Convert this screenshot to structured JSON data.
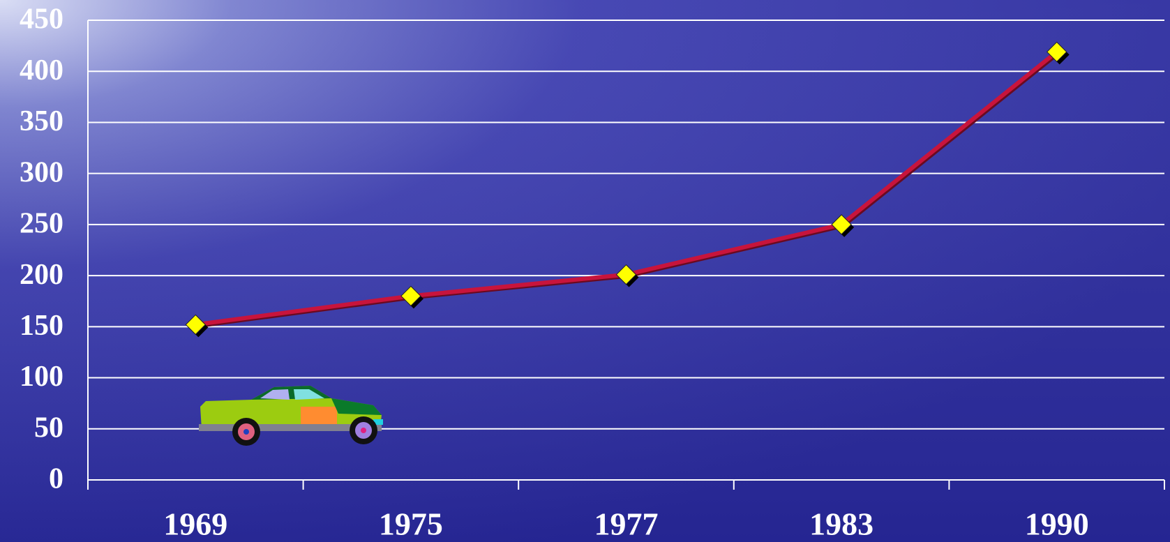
{
  "chart_data": {
    "type": "line",
    "categories": [
      "1969",
      "1975",
      "1977",
      "1983",
      "1990"
    ],
    "series": [
      {
        "color": "#c8143c",
        "marker_color": "#ffff00",
        "values": [
          152,
          180,
          201,
          250,
          419
        ]
      }
    ],
    "ylim": [
      0,
      450
    ],
    "yticks": [
      0,
      50,
      100,
      150,
      200,
      250,
      300,
      350,
      400,
      450
    ],
    "grid": true
  }
}
